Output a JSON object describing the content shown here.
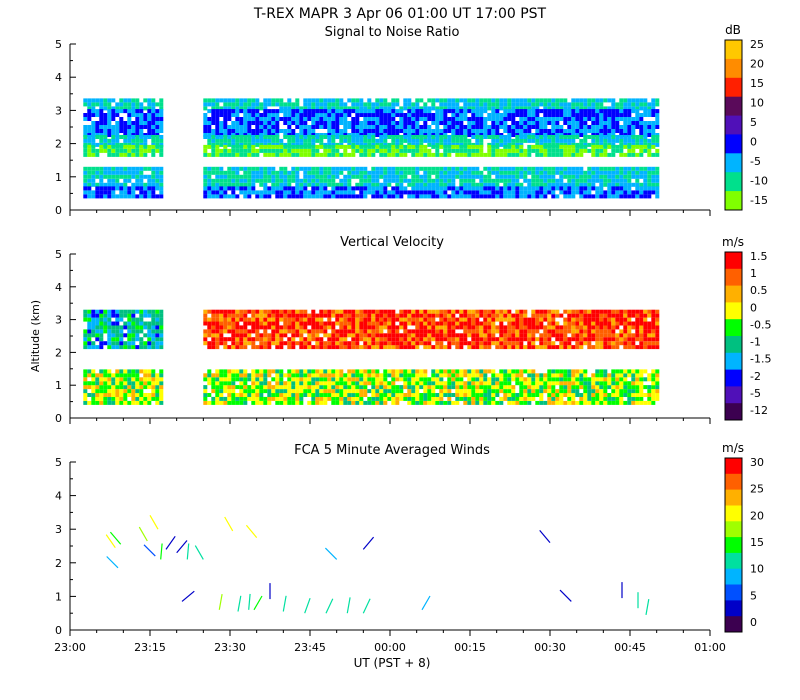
{
  "figure_title": "T-REX   MAPR   3 Apr 06   01:00 UT   17:00   PST",
  "shared_x_axis": {
    "label": "UT  (PST + 8)",
    "ticks": [
      "23:00",
      "23:15",
      "23:30",
      "23:45",
      "00:00",
      "00:15",
      "00:30",
      "00:45",
      "01:00"
    ],
    "range_minutes": [
      0,
      120
    ]
  },
  "shared_y_label": "Altitude (km)",
  "chart_data": [
    {
      "type": "heatmap",
      "title": "Signal to Noise Ratio",
      "ylabel": "",
      "ylim": [
        0,
        5
      ],
      "yticks": [
        "0",
        "1",
        "2",
        "3",
        "4",
        "5"
      ],
      "colorbar": {
        "unit": "dB",
        "labels": [
          "25",
          "20",
          "15",
          "10",
          "5",
          "0",
          "-5",
          "-10",
          "-15"
        ],
        "colors": [
          "#FFC800",
          "#FF8C00",
          "#FF2000",
          "#5A0A5A",
          "#5010B8",
          "#0000FF",
          "#00B4FF",
          "#00E08C",
          "#80FF00"
        ]
      },
      "data_gaps_minutes": [
        [
          17,
          25
        ]
      ],
      "layers": [
        {
          "alt": [
            3.0,
            3.3
          ],
          "value": -10
        },
        {
          "alt": [
            2.2,
            3.0
          ],
          "value": -5
        },
        {
          "alt": [
            1.9,
            2.2
          ],
          "value": -10
        },
        {
          "alt": [
            1.6,
            1.9
          ],
          "value": -15
        },
        {
          "alt": [
            1.2,
            1.6
          ],
          "value": null
        },
        {
          "alt": [
            0.7,
            1.2
          ],
          "value": -10
        },
        {
          "alt": [
            0.35,
            0.7
          ],
          "value": -5
        }
      ]
    },
    {
      "type": "heatmap",
      "title": "Vertical Velocity",
      "ylabel": "Altitude (km)",
      "ylim": [
        0,
        5
      ],
      "yticks": [
        "0",
        "1",
        "2",
        "3",
        "4",
        "5"
      ],
      "colorbar": {
        "unit": "m/s",
        "labels": [
          "1.5",
          "1",
          "0.5",
          "0",
          "-0.5",
          "-1",
          "-1.5",
          "-2",
          "-5",
          "-12"
        ],
        "colors": [
          "#FF0000",
          "#FF6000",
          "#FFB000",
          "#FFFF00",
          "#00FF00",
          "#00C080",
          "#00B4FF",
          "#0000FF",
          "#5010B8",
          "#3C0050"
        ]
      },
      "data_gaps_minutes": [
        [
          17,
          25
        ]
      ],
      "layers": [
        {
          "alt": [
            2.1,
            3.3
          ],
          "value_before_gap": -1.5,
          "value_after_gap": 1.0
        },
        {
          "alt": [
            1.4,
            2.1
          ],
          "value": null
        },
        {
          "alt": [
            0.4,
            1.4
          ],
          "value": -0.5
        }
      ]
    },
    {
      "type": "scatter",
      "title": "FCA 5 Minute Averaged Winds",
      "ylabel": "",
      "ylim": [
        0,
        5
      ],
      "yticks": [
        "0",
        "1",
        "2",
        "3",
        "4",
        "5"
      ],
      "colorbar": {
        "unit": "m/s",
        "labels": [
          "30",
          "25",
          "20",
          "15",
          "10",
          "5",
          "0"
        ],
        "colors": [
          "#FF0000",
          "#FF6000",
          "#FFB000",
          "#FFFF00",
          "#A0FF00",
          "#00FF00",
          "#00E0A0",
          "#00B4FF",
          "#0050FF",
          "#0000C8",
          "#3C0050"
        ]
      },
      "barbs": [
        {
          "t": 8.5,
          "alt": 2.45,
          "speed": 20,
          "angle": -35
        },
        {
          "t": 9.5,
          "alt": 2.55,
          "speed": 15,
          "angle": -40
        },
        {
          "t": 9.0,
          "alt": 1.85,
          "speed": 10,
          "angle": -45
        },
        {
          "t": 14.5,
          "alt": 2.65,
          "speed": 18,
          "angle": -30
        },
        {
          "t": 16.5,
          "alt": 3.0,
          "speed": 20,
          "angle": -30
        },
        {
          "t": 16.0,
          "alt": 2.2,
          "speed": 5,
          "angle": -45
        },
        {
          "t": 18.0,
          "alt": 2.4,
          "speed": 3,
          "angle": 35
        },
        {
          "t": 17.0,
          "alt": 2.1,
          "speed": 15,
          "angle": 5
        },
        {
          "t": 20.0,
          "alt": 2.3,
          "speed": 3,
          "angle": 40
        },
        {
          "t": 22.0,
          "alt": 2.1,
          "speed": 13,
          "angle": 5
        },
        {
          "t": 25.0,
          "alt": 2.1,
          "speed": 12,
          "angle": -30
        },
        {
          "t": 30.5,
          "alt": 2.95,
          "speed": 22,
          "angle": -30
        },
        {
          "t": 35.0,
          "alt": 2.75,
          "speed": 20,
          "angle": -40
        },
        {
          "t": 50.0,
          "alt": 2.1,
          "speed": 10,
          "angle": -45
        },
        {
          "t": 55.0,
          "alt": 2.4,
          "speed": 3,
          "angle": 40
        },
        {
          "t": 21.0,
          "alt": 0.85,
          "speed": 3,
          "angle": 50
        },
        {
          "t": 28.0,
          "alt": 0.6,
          "speed": 17,
          "angle": 10
        },
        {
          "t": 31.5,
          "alt": 0.55,
          "speed": 13,
          "angle": 10
        },
        {
          "t": 33.5,
          "alt": 0.6,
          "speed": 12,
          "angle": 5
        },
        {
          "t": 34.5,
          "alt": 0.6,
          "speed": 14,
          "angle": 30
        },
        {
          "t": 37.5,
          "alt": 0.92,
          "speed": 3,
          "angle": 0
        },
        {
          "t": 40.0,
          "alt": 0.55,
          "speed": 12,
          "angle": 10
        },
        {
          "t": 44.0,
          "alt": 0.5,
          "speed": 12,
          "angle": 20
        },
        {
          "t": 48.0,
          "alt": 0.5,
          "speed": 11,
          "angle": 25
        },
        {
          "t": 52.0,
          "alt": 0.5,
          "speed": 13,
          "angle": 10
        },
        {
          "t": 55.0,
          "alt": 0.5,
          "speed": 12,
          "angle": 25
        },
        {
          "t": 66.0,
          "alt": 0.6,
          "speed": 10,
          "angle": 30
        },
        {
          "t": 90.0,
          "alt": 2.6,
          "speed": 3,
          "angle": -40
        },
        {
          "t": 94.0,
          "alt": 0.85,
          "speed": 4,
          "angle": -45
        },
        {
          "t": 103.5,
          "alt": 0.95,
          "speed": 4,
          "angle": 0
        },
        {
          "t": 106.5,
          "alt": 0.65,
          "speed": 11,
          "angle": 0
        },
        {
          "t": 108.0,
          "alt": 0.45,
          "speed": 12,
          "angle": 10
        }
      ]
    }
  ]
}
